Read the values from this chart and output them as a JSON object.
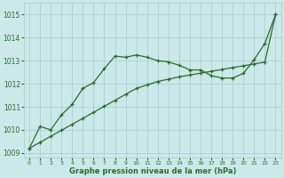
{
  "x": [
    0,
    1,
    2,
    3,
    4,
    5,
    6,
    7,
    8,
    9,
    10,
    11,
    12,
    13,
    14,
    15,
    16,
    17,
    18,
    19,
    20,
    21,
    22,
    23
  ],
  "line1": [
    1009.2,
    1010.15,
    1010.0,
    1010.65,
    1011.1,
    1011.8,
    1012.05,
    1012.65,
    1013.2,
    1013.15,
    1013.25,
    1013.15,
    1013.0,
    1012.95,
    1012.8,
    1012.6,
    1012.6,
    1012.35,
    1012.25,
    1012.25,
    1012.45,
    1013.05,
    1013.75,
    1015.0
  ],
  "line2": [
    1009.2,
    1009.46,
    1009.72,
    1009.98,
    1010.24,
    1010.5,
    1010.76,
    1011.02,
    1011.28,
    1011.54,
    1011.8,
    1011.95,
    1012.1,
    1012.2,
    1012.3,
    1012.38,
    1012.46,
    1012.54,
    1012.62,
    1012.7,
    1012.78,
    1012.86,
    1012.94,
    1015.0
  ],
  "line_color": "#2d6a2d",
  "bg_color": "#cce8e8",
  "grid_color": "#a8cccc",
  "xlabel": "Graphe pression niveau de la mer (hPa)",
  "ylim": [
    1008.8,
    1015.5
  ],
  "xlim": [
    -0.5,
    23.5
  ],
  "yticks": [
    1009,
    1010,
    1011,
    1012,
    1013,
    1014,
    1015
  ],
  "xticks": [
    0,
    1,
    2,
    3,
    4,
    5,
    6,
    7,
    8,
    9,
    10,
    11,
    12,
    13,
    14,
    15,
    16,
    17,
    18,
    19,
    20,
    21,
    22,
    23
  ]
}
